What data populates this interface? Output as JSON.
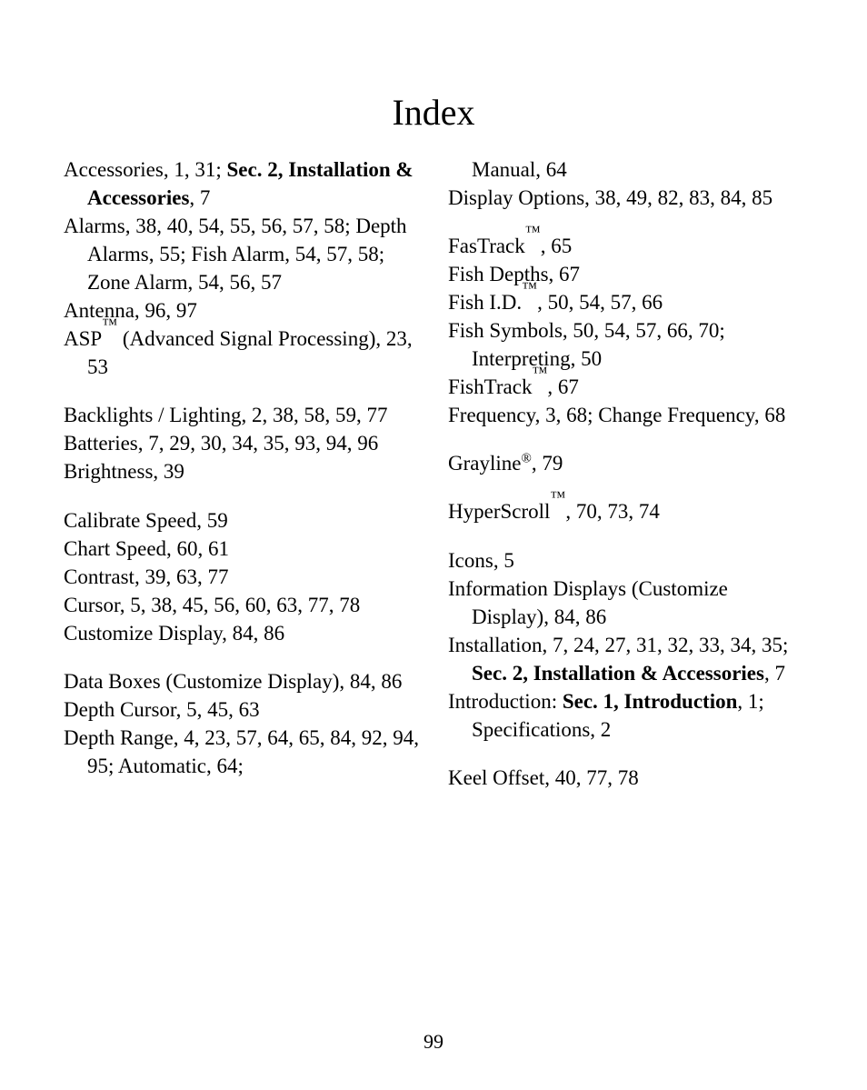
{
  "title": "Index",
  "page_number": "99",
  "left_column": [
    {
      "type": "entry",
      "html": "Accessories, 1, 31; <b>Sec. 2, Installation &amp; Accessories</b>, 7"
    },
    {
      "type": "entry",
      "html": "Alarms, 38, 40, 54, 55, 56, 57, 58; Depth Alarms, 55; Fish Alarm, 54, 57, 58; Zone Alarm, 54, 56, 57"
    },
    {
      "type": "entry",
      "html": "Antenna, 96, 97"
    },
    {
      "type": "entry",
      "html": "ASP<span class=\"tm\">™</span> (Advanced Signal Processing), 23, 53"
    },
    {
      "type": "gap"
    },
    {
      "type": "entry",
      "html": "Backlights / Lighting, 2, 38, 58, 59, 77"
    },
    {
      "type": "entry",
      "html": "Batteries, 7, 29, 30, 34, 35, 93, 94, 96"
    },
    {
      "type": "entry",
      "html": "Brightness, 39"
    },
    {
      "type": "gap"
    },
    {
      "type": "entry",
      "html": "Calibrate Speed, 59"
    },
    {
      "type": "entry",
      "html": "Chart Speed, 60, 61"
    },
    {
      "type": "entry",
      "html": "Contrast, 39, 63, 77"
    },
    {
      "type": "entry",
      "html": "Cursor, 5, 38, 45, 56, 60, 63, 77, 78"
    },
    {
      "type": "entry",
      "html": "Customize Display, 84, 86"
    },
    {
      "type": "gap"
    },
    {
      "type": "entry",
      "html": "Data Boxes (Customize Display), 84, 86"
    },
    {
      "type": "entry",
      "html": "Depth Cursor, 5, 45, 63"
    },
    {
      "type": "entry",
      "html": "Depth Range, 4, 23, 57, 64, 65, 84, 92, 94, 95; Automatic, 64;"
    }
  ],
  "right_column": [
    {
      "type": "entry",
      "html": "Manual, 64",
      "continuation": true
    },
    {
      "type": "entry",
      "html": "Display Options, 38, 49, 82, 83, 84, 85"
    },
    {
      "type": "gap"
    },
    {
      "type": "entry",
      "html": "FasTrack<span class=\"tm\">™</span>, 65"
    },
    {
      "type": "entry",
      "html": "Fish Depths, 67"
    },
    {
      "type": "entry",
      "html": "Fish I.D.<span class=\"tm\">™</span>, 50, 54, 57, 66"
    },
    {
      "type": "entry",
      "html": "Fish Symbols, 50, 54, 57, 66, 70; Interpreting, 50"
    },
    {
      "type": "entry",
      "html": "FishTrack<span class=\"tm\">™</span>, 67"
    },
    {
      "type": "entry",
      "html": "Frequency, 3, 68; Change Frequency, 68"
    },
    {
      "type": "gap"
    },
    {
      "type": "entry",
      "html": "Grayline<sup>®</sup>, 79"
    },
    {
      "type": "gap"
    },
    {
      "type": "entry",
      "html": "HyperScroll<span class=\"tm\">™</span>, 70, 73, 74"
    },
    {
      "type": "gap"
    },
    {
      "type": "entry",
      "html": "Icons, 5"
    },
    {
      "type": "entry",
      "html": "Information Displays (Customize Display), 84, 86"
    },
    {
      "type": "entry",
      "html": "Installation, 7, 24, 27, 31, 32, 33, 34, 35; <b>Sec. 2, Installation &amp; Accessories</b>, 7"
    },
    {
      "type": "entry",
      "html": "Introduction: <b>Sec. 1, Introduction</b>, 1; Specifications, 2"
    },
    {
      "type": "gap"
    },
    {
      "type": "entry",
      "html": "Keel Offset, 40, 77, 78"
    }
  ]
}
